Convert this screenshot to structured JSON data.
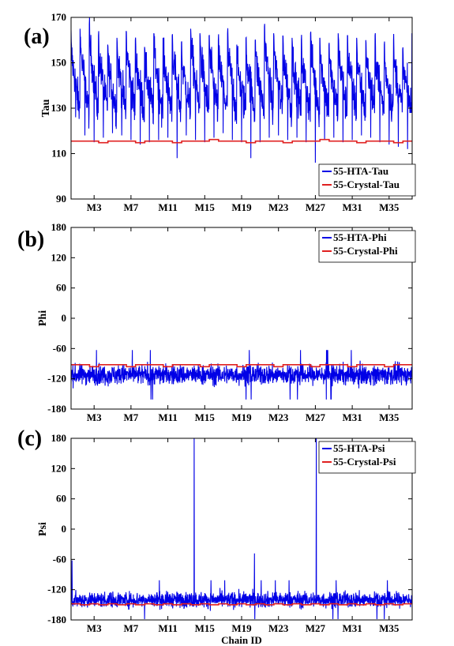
{
  "figure": {
    "background": "#ffffff",
    "series_colors": {
      "hta": "#0000e6",
      "crystal": "#e02020"
    }
  },
  "chart_data": [
    {
      "type": "line",
      "panel_label": "(a)",
      "title": "",
      "xlabel": "",
      "ylabel": "Tau",
      "ylim": [
        90,
        170
      ],
      "yticks": [
        90,
        110,
        130,
        150,
        170
      ],
      "xlim": [
        0,
        37
      ],
      "xticks": [
        2.5,
        6.5,
        10.5,
        14.5,
        18.5,
        22.5,
        26.5,
        30.5,
        34.5
      ],
      "xtick_labels": [
        "M3",
        "M7",
        "M11",
        "M15",
        "M19",
        "M23",
        "M27",
        "M31",
        "M35"
      ],
      "grid": false,
      "legend": "bottom-right",
      "series": [
        {
          "name": "55-HTA-Tau",
          "color": "#0000e6",
          "pattern": "sawtooth",
          "per_chain_peak": [
            163,
            165,
            167,
            162,
            158,
            161,
            164,
            160,
            157,
            163,
            161,
            162,
            159,
            165,
            163,
            162,
            160,
            163,
            158,
            161,
            160,
            166,
            163,
            162,
            161,
            160,
            163,
            161,
            158,
            163,
            162,
            161,
            160,
            162,
            158,
            160,
            156
          ],
          "per_chain_low": [
            126,
            118,
            115,
            117,
            119,
            118,
            116,
            114,
            115,
            116,
            117,
            108,
            118,
            116,
            115,
            117,
            119,
            116,
            115,
            108,
            115,
            117,
            118,
            116,
            117,
            115,
            106,
            116,
            117,
            115,
            116,
            118,
            117,
            115,
            114,
            113,
            112
          ],
          "per_chain_mid": 130
        },
        {
          "name": "55-Crystal-Tau",
          "color": "#e02020",
          "pattern": "step",
          "per_chain_value": [
            115.5,
            115.5,
            115.5,
            114.8,
            115.5,
            115.5,
            115.5,
            114.8,
            115.5,
            115.5,
            115.5,
            114.8,
            115.5,
            115.5,
            115.5,
            116.2,
            115.5,
            115.5,
            115.5,
            114.8,
            115.5,
            115.5,
            115.5,
            114.8,
            115.5,
            115.5,
            115.5,
            116.2,
            115.5,
            115.5,
            115.5,
            114.8,
            115.5,
            115.5,
            115.5,
            114.8,
            115.5
          ]
        }
      ]
    },
    {
      "type": "line",
      "panel_label": "(b)",
      "title": "",
      "xlabel": "",
      "ylabel": "Phi",
      "ylim": [
        -180,
        180
      ],
      "yticks": [
        -180,
        -120,
        -60,
        0,
        60,
        120,
        180
      ],
      "xlim": [
        0,
        37
      ],
      "xticks": [
        2.5,
        6.5,
        10.5,
        14.5,
        18.5,
        22.5,
        26.5,
        30.5,
        34.5
      ],
      "xtick_labels": [
        "M3",
        "M7",
        "M11",
        "M15",
        "M19",
        "M23",
        "M27",
        "M31",
        "M35"
      ],
      "grid": false,
      "legend": "top-right",
      "series": [
        {
          "name": "55-HTA-Phi",
          "color": "#0000e6",
          "pattern": "noise",
          "center": -112,
          "spread": 14,
          "max": -62,
          "min": -180
        },
        {
          "name": "55-Crystal-Phi",
          "color": "#e02020",
          "pattern": "step",
          "per_chain_value": [
            -92,
            -92,
            -96,
            -92,
            -92,
            -92,
            -96,
            -92,
            -92,
            -92,
            -96,
            -92,
            -92,
            -92,
            -96,
            -92,
            -92,
            -92,
            -96,
            -92,
            -92,
            -92,
            -96,
            -92,
            -92,
            -92,
            -96,
            -92,
            -92,
            -92,
            -96,
            -92,
            -92,
            -92,
            -96,
            -92,
            -92
          ]
        }
      ]
    },
    {
      "type": "line",
      "panel_label": "(c)",
      "title": "",
      "xlabel": "Chain ID",
      "ylabel": "Psi",
      "ylim": [
        -180,
        180
      ],
      "yticks": [
        -180,
        -120,
        -60,
        0,
        60,
        120,
        180
      ],
      "xlim": [
        0,
        37
      ],
      "xticks": [
        2.5,
        6.5,
        10.5,
        14.5,
        18.5,
        22.5,
        26.5,
        30.5,
        34.5
      ],
      "xtick_labels": [
        "M3",
        "M7",
        "M11",
        "M15",
        "M19",
        "M23",
        "M27",
        "M31",
        "M35"
      ],
      "grid": false,
      "legend": "top-right",
      "series": [
        {
          "name": "55-HTA-Psi",
          "color": "#0000e6",
          "pattern": "noise",
          "center": -140,
          "spread": 11,
          "spikes": [
            {
              "x": 13.35,
              "y": 180
            },
            {
              "x": 26.6,
              "y": 180
            },
            {
              "x": 19.9,
              "y": -48
            },
            {
              "x": 0.1,
              "y": -62
            }
          ]
        },
        {
          "name": "55-Crystal-Psi",
          "color": "#e02020",
          "pattern": "step",
          "per_chain_value": [
            -148,
            -150,
            -148,
            -150,
            -148,
            -150,
            -148,
            -150,
            -148,
            -150,
            -148,
            -150,
            -148,
            -150,
            -148,
            -150,
            -148,
            -150,
            -148,
            -150,
            -148,
            -150,
            -148,
            -150,
            -148,
            -150,
            -148,
            -150,
            -148,
            -150,
            -148,
            -150,
            -148,
            -150,
            -148,
            -150,
            -148
          ]
        }
      ]
    }
  ]
}
